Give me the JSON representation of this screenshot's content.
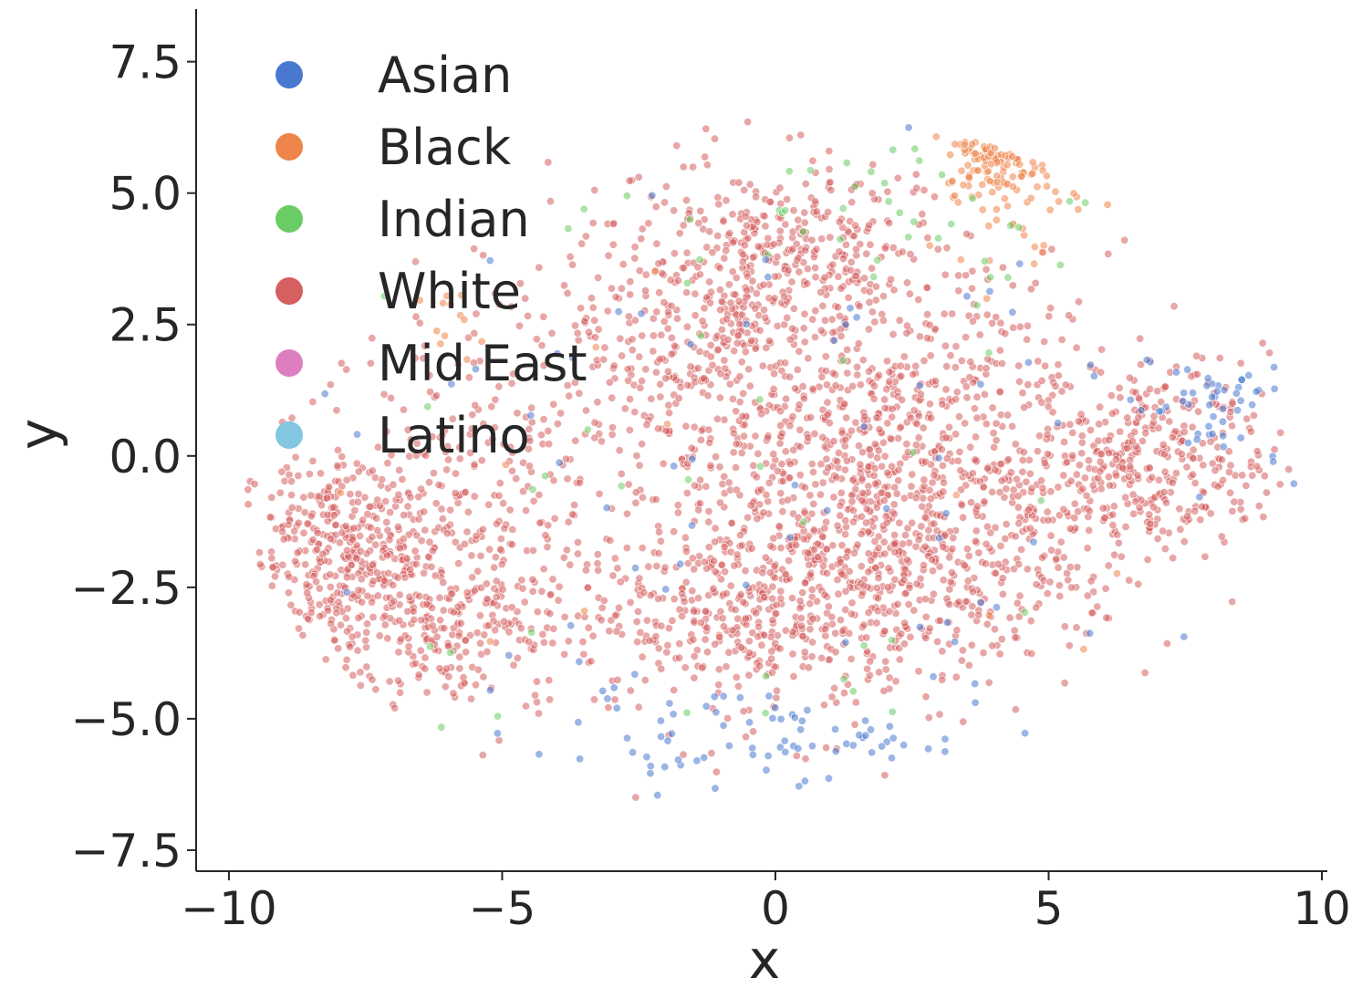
{
  "chart_data": {
    "type": "scatter",
    "title": "",
    "xlabel": "x",
    "ylabel": "y",
    "xlim": [
      -10.6,
      10.1
    ],
    "ylim": [
      -7.9,
      8.5
    ],
    "xticks": [
      -10,
      -5,
      0,
      5,
      10
    ],
    "yticks": [
      -7.5,
      -5.0,
      -2.5,
      0.0,
      2.5,
      5.0,
      7.5
    ],
    "xtick_labels": [
      "−10",
      "−5",
      "0",
      "5",
      "10"
    ],
    "ytick_labels": [
      "−7.5",
      "−5.0",
      "−2.5",
      "0.0",
      "2.5",
      "5.0",
      "7.5"
    ],
    "grid": false,
    "legend_position": "top-left",
    "point_opacity": 0.55,
    "series": [
      {
        "name": "Asian",
        "color": "#4878d0",
        "count": 190,
        "clusters": [
          {
            "cx": 0.2,
            "cy": -5.4,
            "sx": 1.4,
            "sy": 0.35,
            "w": 0.28
          },
          {
            "cx": 7.9,
            "cy": 1.0,
            "sx": 0.7,
            "sy": 0.6,
            "w": 0.25
          },
          {
            "cx": 0.0,
            "cy": -0.5,
            "sx": 5.5,
            "sy": 3.5,
            "w": 0.35
          },
          {
            "cx": -3.0,
            "cy": -5.0,
            "sx": 1.2,
            "sy": 0.8,
            "w": 0.12
          }
        ]
      },
      {
        "name": "Black",
        "color": "#ee854a",
        "count": 150,
        "clusters": [
          {
            "cx": 4.1,
            "cy": 5.9,
            "sx": 0.5,
            "sy": 0.45,
            "w": 0.65
          },
          {
            "cx": 4.5,
            "cy": 4.8,
            "sx": 0.6,
            "sy": 0.6,
            "w": 0.2
          },
          {
            "cx": -5.9,
            "cy": 2.5,
            "sx": 0.25,
            "sy": 0.3,
            "w": 0.08
          },
          {
            "cx": 0.0,
            "cy": 0.0,
            "sx": 5.0,
            "sy": 4.0,
            "w": 0.07
          }
        ]
      },
      {
        "name": "Indian",
        "color": "#6acc64",
        "count": 70,
        "clusters": [
          {
            "cx": 2.0,
            "cy": 4.6,
            "sx": 1.8,
            "sy": 0.8,
            "w": 0.5
          },
          {
            "cx": 0.0,
            "cy": -1.0,
            "sx": 6.0,
            "sy": 3.5,
            "w": 0.5
          }
        ]
      },
      {
        "name": "White",
        "color": "#d65f5f",
        "count": 3400,
        "clusters": [
          {
            "cx": -7.8,
            "cy": -1.8,
            "sx": 1.0,
            "sy": 0.9,
            "w": 0.12
          },
          {
            "cx": -6.0,
            "cy": -3.3,
            "sx": 1.2,
            "sy": 0.9,
            "w": 0.07
          },
          {
            "cx": -5.0,
            "cy": -0.5,
            "sx": 1.6,
            "sy": 1.6,
            "w": 0.06
          },
          {
            "cx": -1.0,
            "cy": 2.8,
            "sx": 1.5,
            "sy": 1.3,
            "w": 0.12
          },
          {
            "cx": 0.6,
            "cy": 3.8,
            "sx": 1.2,
            "sy": 0.8,
            "w": 0.06
          },
          {
            "cx": 1.0,
            "cy": -1.0,
            "sx": 1.8,
            "sy": 1.6,
            "w": 0.2
          },
          {
            "cx": -0.5,
            "cy": -3.0,
            "sx": 1.7,
            "sy": 1.1,
            "w": 0.1
          },
          {
            "cx": 3.0,
            "cy": 0.8,
            "sx": 1.5,
            "sy": 1.4,
            "w": 0.09
          },
          {
            "cx": 6.8,
            "cy": 0.0,
            "sx": 1.1,
            "sy": 0.9,
            "w": 0.11
          },
          {
            "cx": 3.5,
            "cy": -2.5,
            "sx": 1.7,
            "sy": 1.0,
            "w": 0.06
          },
          {
            "cx": 0.0,
            "cy": 0.0,
            "sx": 4.5,
            "sy": 3.0,
            "w": 0.06
          }
        ]
      },
      {
        "name": "Mid East",
        "color": "#dc7ec0",
        "count": 0,
        "clusters": []
      },
      {
        "name": "Latino",
        "color": "#82c6e2",
        "count": 0,
        "clusters": []
      }
    ]
  }
}
